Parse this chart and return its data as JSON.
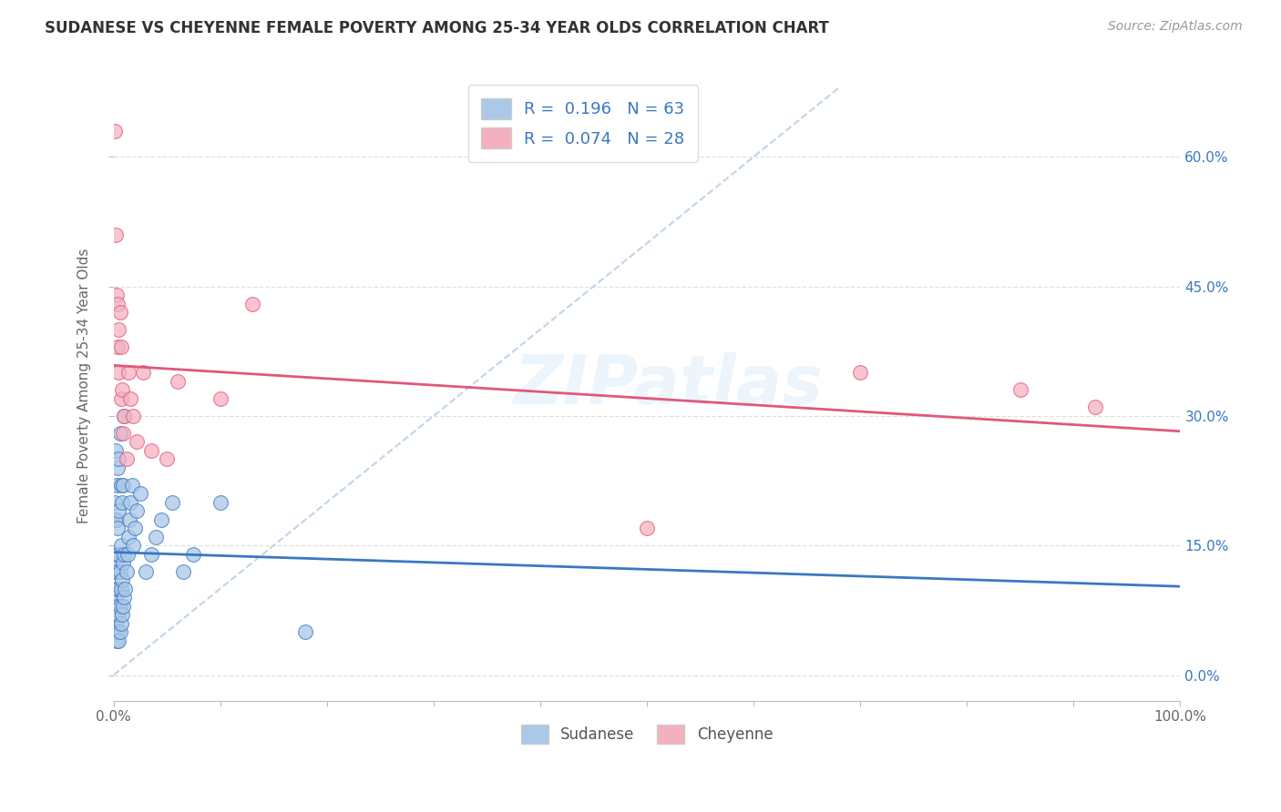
{
  "title": "SUDANESE VS CHEYENNE FEMALE POVERTY AMONG 25-34 YEAR OLDS CORRELATION CHART",
  "source": "Source: ZipAtlas.com",
  "ylabel": "Female Poverty Among 25-34 Year Olds",
  "xlim": [
    0.0,
    1.0
  ],
  "ylim": [
    -0.03,
    0.7
  ],
  "xticks": [
    0.0,
    0.1,
    0.2,
    0.3,
    0.4,
    0.5,
    0.6,
    0.7,
    0.8,
    0.9,
    1.0
  ],
  "xticklabels_shown": {
    "0.0": "0.0%",
    "1.0": "100.0%"
  },
  "yticks": [
    0.0,
    0.15,
    0.3,
    0.45,
    0.6
  ],
  "yticklabels": [
    "0.0%",
    "15.0%",
    "30.0%",
    "45.0%",
    "60.0%"
  ],
  "legend_r_sudanese": "0.196",
  "legend_n_sudanese": "63",
  "legend_r_cheyenne": "0.074",
  "legend_n_cheyenne": "28",
  "sudanese_color": "#aac8e8",
  "cheyenne_color": "#f5b0c0",
  "sudanese_line_color": "#3a78c0",
  "cheyenne_line_color": "#e05878",
  "diagonal_color": "#c0d4ec",
  "watermark": "ZIPatlas",
  "sudanese_x": [
    0.001,
    0.001,
    0.001,
    0.001,
    0.002,
    0.002,
    0.002,
    0.002,
    0.002,
    0.003,
    0.003,
    0.003,
    0.003,
    0.003,
    0.003,
    0.004,
    0.004,
    0.004,
    0.004,
    0.004,
    0.005,
    0.005,
    0.005,
    0.005,
    0.005,
    0.005,
    0.006,
    0.006,
    0.006,
    0.006,
    0.007,
    0.007,
    0.007,
    0.007,
    0.008,
    0.008,
    0.008,
    0.009,
    0.009,
    0.009,
    0.01,
    0.01,
    0.01,
    0.011,
    0.012,
    0.013,
    0.014,
    0.015,
    0.016,
    0.017,
    0.018,
    0.02,
    0.022,
    0.025,
    0.03,
    0.035,
    0.04,
    0.045,
    0.055,
    0.065,
    0.075,
    0.1,
    0.18
  ],
  "sudanese_y": [
    0.05,
    0.08,
    0.12,
    0.2,
    0.06,
    0.09,
    0.13,
    0.18,
    0.26,
    0.04,
    0.07,
    0.1,
    0.14,
    0.18,
    0.22,
    0.05,
    0.08,
    0.12,
    0.17,
    0.24,
    0.04,
    0.07,
    0.1,
    0.14,
    0.19,
    0.25,
    0.05,
    0.08,
    0.12,
    0.28,
    0.06,
    0.1,
    0.15,
    0.22,
    0.07,
    0.11,
    0.2,
    0.08,
    0.13,
    0.22,
    0.09,
    0.14,
    0.3,
    0.1,
    0.12,
    0.14,
    0.16,
    0.18,
    0.2,
    0.22,
    0.15,
    0.17,
    0.19,
    0.21,
    0.12,
    0.14,
    0.16,
    0.18,
    0.2,
    0.12,
    0.14,
    0.2,
    0.05
  ],
  "cheyenne_x": [
    0.001,
    0.002,
    0.003,
    0.004,
    0.004,
    0.005,
    0.005,
    0.006,
    0.007,
    0.007,
    0.008,
    0.009,
    0.01,
    0.012,
    0.014,
    0.016,
    0.018,
    0.022,
    0.028,
    0.035,
    0.05,
    0.06,
    0.1,
    0.13,
    0.5,
    0.7,
    0.85,
    0.92
  ],
  "cheyenne_y": [
    0.63,
    0.51,
    0.44,
    0.43,
    0.38,
    0.4,
    0.35,
    0.42,
    0.32,
    0.38,
    0.33,
    0.28,
    0.3,
    0.25,
    0.35,
    0.32,
    0.3,
    0.27,
    0.35,
    0.26,
    0.25,
    0.34,
    0.32,
    0.43,
    0.17,
    0.35,
    0.33,
    0.31
  ],
  "figsize": [
    14.06,
    8.92
  ],
  "dpi": 100
}
